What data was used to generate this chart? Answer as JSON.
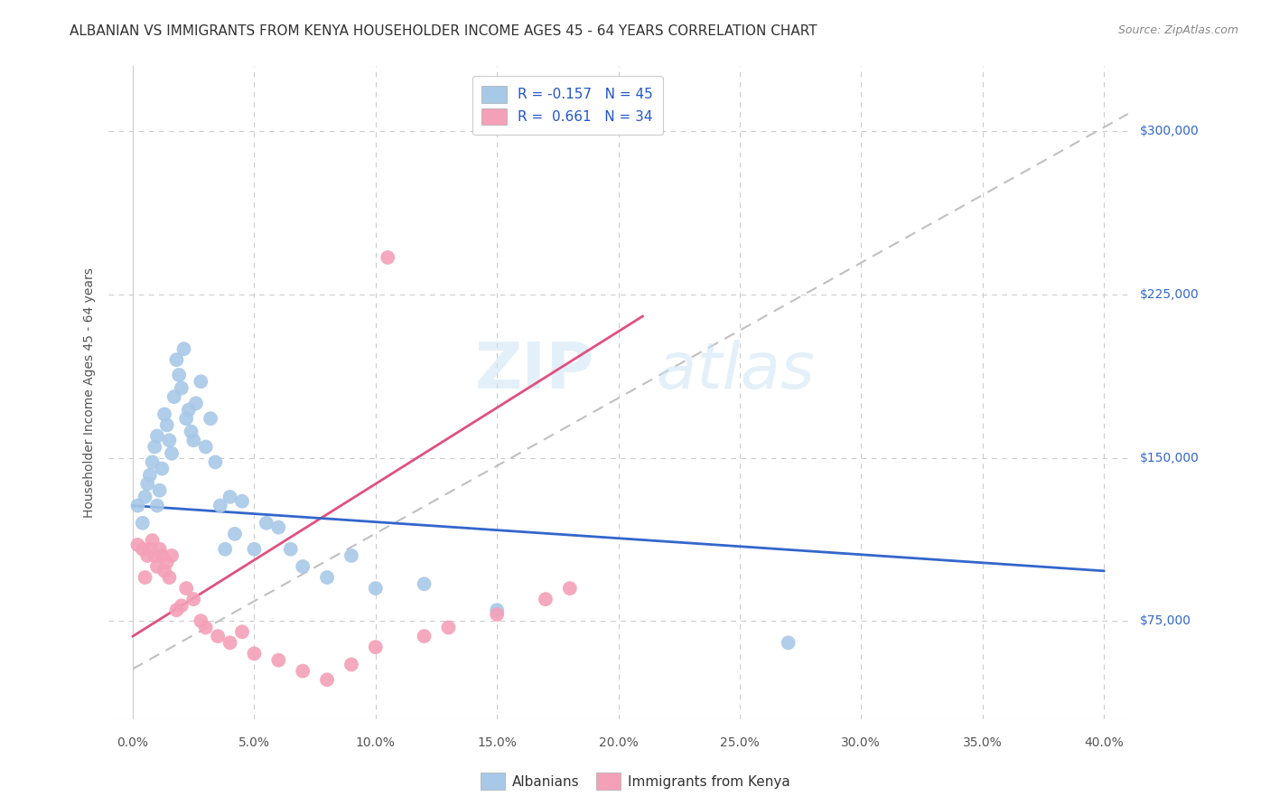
{
  "title": "ALBANIAN VS IMMIGRANTS FROM KENYA HOUSEHOLDER INCOME AGES 45 - 64 YEARS CORRELATION CHART",
  "source": "Source: ZipAtlas.com",
  "ylabel": "Householder Income Ages 45 - 64 years",
  "xlabel_ticks": [
    "0.0%",
    "5.0%",
    "10.0%",
    "15.0%",
    "20.0%",
    "25.0%",
    "30.0%",
    "35.0%",
    "40.0%"
  ],
  "xlabel_vals": [
    0.0,
    5.0,
    10.0,
    15.0,
    20.0,
    25.0,
    30.0,
    35.0,
    40.0
  ],
  "ytick_labels": [
    "$75,000",
    "$150,000",
    "$225,000",
    "$300,000"
  ],
  "ytick_vals": [
    75000,
    150000,
    225000,
    300000
  ],
  "xlim": [
    -1.0,
    41.0
  ],
  "ylim": [
    30000,
    330000
  ],
  "legend_label_blue": "Albanians",
  "legend_label_pink": "Immigrants from Kenya",
  "R_blue": -0.157,
  "N_blue": 45,
  "R_pink": 0.661,
  "N_pink": 34,
  "blue_color": "#a8c8e8",
  "pink_color": "#f4a0b8",
  "blue_line_color": "#3366cc",
  "pink_line_color": "#e05080",
  "dashed_line_color": "#c0c0c0",
  "background_color": "#ffffff",
  "plot_bg_color": "#ffffff",
  "grid_color": "#cccccc",
  "blue_scatter_x": [
    0.2,
    0.4,
    0.5,
    0.6,
    0.7,
    0.8,
    0.9,
    1.0,
    1.0,
    1.1,
    1.2,
    1.3,
    1.4,
    1.5,
    1.6,
    1.7,
    1.8,
    1.9,
    2.0,
    2.1,
    2.2,
    2.3,
    2.4,
    2.5,
    2.6,
    2.8,
    3.0,
    3.2,
    3.4,
    3.6,
    3.8,
    4.0,
    4.2,
    4.5,
    5.0,
    5.5,
    6.0,
    6.5,
    7.0,
    8.0,
    9.0,
    10.0,
    12.0,
    15.0,
    27.0
  ],
  "blue_scatter_y": [
    128000,
    120000,
    132000,
    138000,
    142000,
    148000,
    155000,
    160000,
    128000,
    135000,
    145000,
    170000,
    165000,
    158000,
    152000,
    178000,
    195000,
    188000,
    182000,
    200000,
    168000,
    172000,
    162000,
    158000,
    175000,
    185000,
    155000,
    168000,
    148000,
    128000,
    108000,
    132000,
    115000,
    130000,
    108000,
    120000,
    118000,
    108000,
    100000,
    95000,
    105000,
    90000,
    92000,
    80000,
    65000
  ],
  "pink_scatter_x": [
    0.2,
    0.4,
    0.5,
    0.6,
    0.7,
    0.8,
    0.9,
    1.0,
    1.1,
    1.2,
    1.3,
    1.4,
    1.5,
    1.6,
    1.8,
    2.0,
    2.2,
    2.5,
    2.8,
    3.0,
    3.5,
    4.0,
    4.5,
    5.0,
    6.0,
    7.0,
    8.0,
    9.0,
    10.0,
    12.0,
    13.0,
    15.0,
    17.0,
    18.0
  ],
  "pink_scatter_y": [
    110000,
    108000,
    95000,
    105000,
    108000,
    112000,
    105000,
    100000,
    108000,
    105000,
    98000,
    102000,
    95000,
    105000,
    80000,
    82000,
    90000,
    85000,
    75000,
    72000,
    68000,
    65000,
    70000,
    60000,
    57000,
    52000,
    48000,
    55000,
    63000,
    68000,
    72000,
    78000,
    85000,
    90000
  ],
  "pink_scatter_special_x": 10.5,
  "pink_scatter_special_y": 242000,
  "blue_trend_x": [
    0.0,
    40.0
  ],
  "blue_trend_y": [
    128000,
    98000
  ],
  "pink_trend_x": [
    0.0,
    21.0
  ],
  "pink_trend_y": [
    68000,
    215000
  ],
  "dashed_trend_x": [
    0.0,
    41.0
  ],
  "dashed_trend_y": [
    53000,
    308000
  ],
  "watermark_zip": "ZIP",
  "watermark_atlas": "atlas",
  "title_fontsize": 11,
  "source_fontsize": 9,
  "axis_label_fontsize": 10,
  "tick_fontsize": 10,
  "legend_fontsize": 11
}
